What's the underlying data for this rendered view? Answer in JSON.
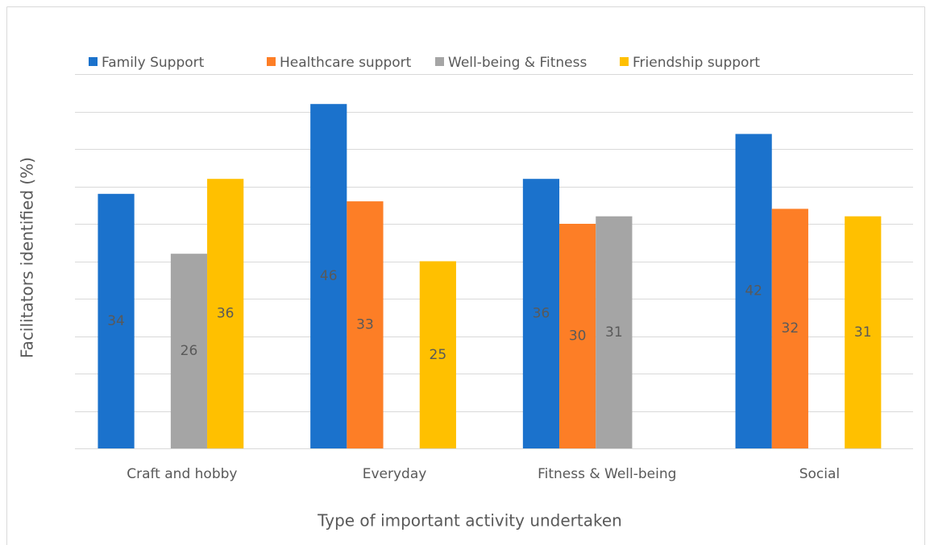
{
  "chart_data": {
    "type": "bar",
    "x_label": "Type of important activity undertaken",
    "y_label": "Facilitators  identified (%)",
    "categories": [
      "Craft and hobby",
      "Everyday",
      "Fitness & Well-being",
      "Social"
    ],
    "series": [
      {
        "name": "Family Support",
        "color": "#1b72cc",
        "values": [
          34,
          46,
          36,
          42
        ]
      },
      {
        "name": "Healthcare support",
        "color": "#fd7e26",
        "values": [
          null,
          33,
          30,
          32
        ]
      },
      {
        "name": "Well-being & Fitness",
        "color": "#a5a5a5",
        "values": [
          26,
          null,
          31,
          null
        ]
      },
      {
        "name": "Friendship support",
        "color": "#ffc000",
        "values": [
          36,
          25,
          null,
          31
        ]
      }
    ],
    "ylim": [
      0,
      50
    ],
    "yticks": [
      0,
      5,
      10,
      15,
      20,
      25,
      30,
      35,
      40,
      45,
      50
    ],
    "grid": true,
    "legend": "top"
  }
}
